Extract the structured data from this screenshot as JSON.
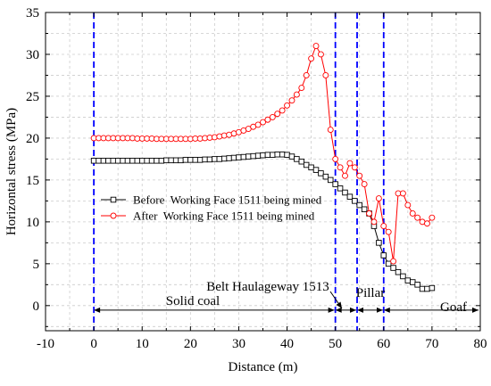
{
  "chart_data": {
    "type": "line",
    "xlabel": "Distance (m)",
    "ylabel": "Horizontal stress (MPa)",
    "xlim": [
      -10,
      80
    ],
    "ylim": [
      -3,
      35
    ],
    "x_ticks": [
      -10,
      0,
      10,
      20,
      30,
      40,
      50,
      60,
      70,
      80
    ],
    "y_ticks": [
      0,
      5,
      10,
      15,
      20,
      25,
      30,
      35
    ],
    "x_tick_labels": [
      "-10",
      "0",
      "10",
      "20",
      "30",
      "40",
      "50",
      "60",
      "70",
      "80"
    ],
    "y_tick_labels": [
      "0",
      "5",
      "10",
      "15",
      "20",
      "25",
      "30",
      "35"
    ],
    "grid": true,
    "legend_position": "center-left",
    "colors": {
      "before": "#000000",
      "after": "#ff0000",
      "boundary": "#0000ff",
      "grid": "#cccccc"
    },
    "series": [
      {
        "name": "Before  Working Face 1511 being mined",
        "marker": "square",
        "x": [
          0,
          1,
          2,
          3,
          4,
          5,
          6,
          7,
          8,
          9,
          10,
          11,
          12,
          13,
          14,
          15,
          16,
          17,
          18,
          19,
          20,
          21,
          22,
          23,
          24,
          25,
          26,
          27,
          28,
          29,
          30,
          31,
          32,
          33,
          34,
          35,
          36,
          37,
          38,
          39,
          40,
          41,
          42,
          43,
          44,
          45,
          46,
          47,
          48,
          49,
          50,
          51,
          52,
          53,
          54,
          55,
          56,
          57,
          58,
          59,
          60,
          61,
          62,
          63,
          64,
          65,
          66,
          67,
          68,
          69,
          70
        ],
        "values": [
          17.3,
          17.3,
          17.3,
          17.3,
          17.3,
          17.3,
          17.3,
          17.3,
          17.3,
          17.3,
          17.3,
          17.3,
          17.3,
          17.3,
          17.3,
          17.35,
          17.35,
          17.35,
          17.35,
          17.4,
          17.4,
          17.4,
          17.4,
          17.45,
          17.45,
          17.5,
          17.5,
          17.55,
          17.6,
          17.65,
          17.7,
          17.75,
          17.8,
          17.85,
          17.9,
          17.95,
          18.0,
          18.0,
          18.05,
          18.05,
          18.0,
          17.8,
          17.5,
          17.2,
          16.8,
          16.5,
          16.2,
          15.8,
          15.4,
          15.0,
          14.5,
          14.0,
          13.5,
          13.0,
          12.5,
          12.0,
          11.5,
          11.0,
          9.5,
          7.5,
          6.0,
          5.0,
          4.5,
          4.0,
          3.5,
          3.0,
          2.8,
          2.5,
          2.0,
          2.0,
          2.1
        ]
      },
      {
        "name": "After  Working Face 1511 being mined",
        "marker": "circle",
        "x": [
          0,
          1,
          2,
          3,
          4,
          5,
          6,
          7,
          8,
          9,
          10,
          11,
          12,
          13,
          14,
          15,
          16,
          17,
          18,
          19,
          20,
          21,
          22,
          23,
          24,
          25,
          26,
          27,
          28,
          29,
          30,
          31,
          32,
          33,
          34,
          35,
          36,
          37,
          38,
          39,
          40,
          41,
          42,
          43,
          44,
          45,
          46,
          47,
          48,
          49,
          50,
          51,
          52,
          53,
          54,
          55,
          56,
          57,
          58,
          59,
          60,
          61,
          62,
          63,
          64,
          65,
          66,
          67,
          68,
          69,
          70
        ],
        "values": [
          20.0,
          20.0,
          20.0,
          20.0,
          20.0,
          20.0,
          20.0,
          20.0,
          20.0,
          19.95,
          19.95,
          19.95,
          19.95,
          19.9,
          19.9,
          19.9,
          19.9,
          19.9,
          19.9,
          19.9,
          19.9,
          19.95,
          19.95,
          20.0,
          20.05,
          20.1,
          20.2,
          20.3,
          20.4,
          20.55,
          20.7,
          20.9,
          21.1,
          21.35,
          21.6,
          21.9,
          22.2,
          22.5,
          22.9,
          23.3,
          23.9,
          24.5,
          25.2,
          26.0,
          27.5,
          29.5,
          31.0,
          30.0,
          27.5,
          21.0,
          17.5,
          16.5,
          15.5,
          17.0,
          16.5,
          15.5,
          14.5,
          11.0,
          10.0,
          12.8,
          9.5,
          8.8,
          5.3,
          13.4,
          13.4,
          12.0,
          11.0,
          10.5,
          10.0,
          9.8,
          10.5
        ]
      }
    ],
    "vlines": [
      0,
      50,
      54.5,
      60
    ],
    "regions": [
      {
        "label": "Solid coal"
      },
      {
        "label": "Belt Haulageway 1513"
      },
      {
        "label": "Pillar"
      },
      {
        "label": "Goaf"
      }
    ]
  }
}
